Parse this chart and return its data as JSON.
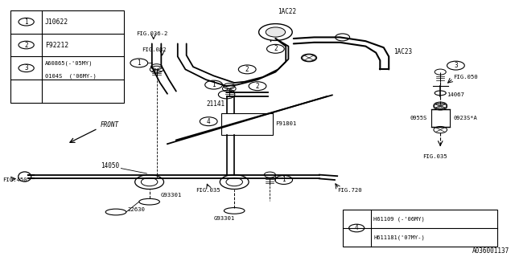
{
  "bg_color": "#ffffff",
  "line_color": "#000000",
  "fig_width": 6.4,
  "fig_height": 3.2,
  "dpi": 100,
  "watermark": "A036001137",
  "legend1": {
    "bx": 0.02,
    "by": 0.6,
    "bw": 0.22,
    "bh": 0.36,
    "col_div": 0.062,
    "rows": [
      {
        "num": "1",
        "text": "J10622"
      },
      {
        "num": "2",
        "text": "F92212"
      },
      {
        "num": "3",
        "text1": "A60865(-'05MY)",
        "text2": "0104S  ('06MY-)"
      }
    ]
  },
  "legend2": {
    "bx": 0.665,
    "by": 0.04,
    "bw": 0.3,
    "bh": 0.145,
    "col_div": 0.055,
    "num": "4",
    "text1": "H61109 (-'06MY)",
    "text2": "H611181('07MY-)"
  }
}
